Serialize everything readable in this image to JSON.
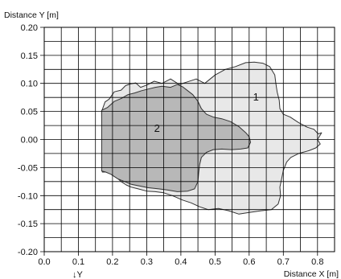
{
  "chart_data": {
    "type": "area",
    "xlabel": "Distance X [m]",
    "ylabel": "Distance Y [m]",
    "xlim": [
      0.0,
      0.85
    ],
    "ylim": [
      -0.2,
      0.2
    ],
    "grid": true,
    "x_ticks": [
      "0.0",
      "0.1",
      "0.2",
      "0.3",
      "0.4",
      "0.5",
      "0.6",
      "0.7",
      "0.8"
    ],
    "y_ticks": [
      "0.20",
      "0.15",
      "0.10",
      "0.05",
      "0.00",
      "-0.05",
      "-0.10",
      "-0.15",
      "-0.20"
    ],
    "stray_text": "↓Y",
    "colors": {
      "grid": "#000000",
      "region_1_fill": "#e8e8e8",
      "region_2_fill": "#b8b8b8",
      "outline": "#333333"
    },
    "series": [
      {
        "name": "1",
        "points": [
          [
            0.168,
            0.05
          ],
          [
            0.178,
            0.067
          ],
          [
            0.19,
            0.072
          ],
          [
            0.205,
            0.085
          ],
          [
            0.225,
            0.088
          ],
          [
            0.238,
            0.096
          ],
          [
            0.252,
            0.099
          ],
          [
            0.268,
            0.101
          ],
          [
            0.282,
            0.093
          ],
          [
            0.3,
            0.097
          ],
          [
            0.322,
            0.104
          ],
          [
            0.345,
            0.1
          ],
          [
            0.37,
            0.108
          ],
          [
            0.395,
            0.098
          ],
          [
            0.42,
            0.103
          ],
          [
            0.445,
            0.108
          ],
          [
            0.47,
            0.1
          ],
          [
            0.5,
            0.115
          ],
          [
            0.53,
            0.125
          ],
          [
            0.56,
            0.13
          ],
          [
            0.59,
            0.137
          ],
          [
            0.615,
            0.138
          ],
          [
            0.64,
            0.136
          ],
          [
            0.66,
            0.13
          ],
          [
            0.675,
            0.115
          ],
          [
            0.678,
            0.1
          ],
          [
            0.682,
            0.085
          ],
          [
            0.688,
            0.07
          ],
          [
            0.69,
            0.055
          ],
          [
            0.7,
            0.045
          ],
          [
            0.72,
            0.04
          ],
          [
            0.745,
            0.03
          ],
          [
            0.77,
            0.022
          ],
          [
            0.79,
            0.018
          ],
          [
            0.802,
            0.01
          ],
          [
            0.812,
            0.012
          ],
          [
            0.8,
            0.0
          ],
          [
            0.808,
            -0.008
          ],
          [
            0.795,
            -0.015
          ],
          [
            0.775,
            -0.02
          ],
          [
            0.745,
            -0.025
          ],
          [
            0.722,
            -0.032
          ],
          [
            0.71,
            -0.04
          ],
          [
            0.7,
            -0.055
          ],
          [
            0.695,
            -0.07
          ],
          [
            0.69,
            -0.085
          ],
          [
            0.692,
            -0.1
          ],
          [
            0.685,
            -0.115
          ],
          [
            0.665,
            -0.125
          ],
          [
            0.635,
            -0.127
          ],
          [
            0.6,
            -0.13
          ],
          [
            0.57,
            -0.133
          ],
          [
            0.54,
            -0.127
          ],
          [
            0.51,
            -0.123
          ],
          [
            0.48,
            -0.125
          ],
          [
            0.455,
            -0.12
          ],
          [
            0.43,
            -0.113
          ],
          [
            0.405,
            -0.108
          ],
          [
            0.375,
            -0.1
          ],
          [
            0.35,
            -0.095
          ],
          [
            0.325,
            -0.093
          ],
          [
            0.3,
            -0.092
          ],
          [
            0.275,
            -0.088
          ],
          [
            0.255,
            -0.085
          ],
          [
            0.24,
            -0.081
          ],
          [
            0.225,
            -0.075
          ],
          [
            0.21,
            -0.067
          ],
          [
            0.195,
            -0.06
          ],
          [
            0.18,
            -0.058
          ],
          [
            0.17,
            -0.058
          ]
        ]
      },
      {
        "name": "2",
        "points": [
          [
            0.168,
            0.052
          ],
          [
            0.185,
            0.057
          ],
          [
            0.205,
            0.068
          ],
          [
            0.225,
            0.073
          ],
          [
            0.245,
            0.08
          ],
          [
            0.265,
            0.083
          ],
          [
            0.285,
            0.087
          ],
          [
            0.305,
            0.09
          ],
          [
            0.325,
            0.093
          ],
          [
            0.345,
            0.095
          ],
          [
            0.37,
            0.093
          ],
          [
            0.39,
            0.098
          ],
          [
            0.405,
            0.094
          ],
          [
            0.42,
            0.087
          ],
          [
            0.435,
            0.08
          ],
          [
            0.45,
            0.068
          ],
          [
            0.46,
            0.055
          ],
          [
            0.475,
            0.045
          ],
          [
            0.495,
            0.04
          ],
          [
            0.52,
            0.037
          ],
          [
            0.545,
            0.032
          ],
          [
            0.57,
            0.023
          ],
          [
            0.59,
            0.012
          ],
          [
            0.6,
            0.005
          ],
          [
            0.604,
            -0.005
          ],
          [
            0.596,
            -0.015
          ],
          [
            0.575,
            -0.017
          ],
          [
            0.548,
            -0.018
          ],
          [
            0.52,
            -0.017
          ],
          [
            0.495,
            -0.018
          ],
          [
            0.475,
            -0.023
          ],
          [
            0.46,
            -0.032
          ],
          [
            0.455,
            -0.045
          ],
          [
            0.452,
            -0.06
          ],
          [
            0.45,
            -0.075
          ],
          [
            0.44,
            -0.088
          ],
          [
            0.42,
            -0.092
          ],
          [
            0.39,
            -0.093
          ],
          [
            0.36,
            -0.09
          ],
          [
            0.335,
            -0.088
          ],
          [
            0.305,
            -0.086
          ],
          [
            0.28,
            -0.083
          ],
          [
            0.255,
            -0.08
          ],
          [
            0.235,
            -0.075
          ],
          [
            0.215,
            -0.07
          ],
          [
            0.195,
            -0.062
          ],
          [
            0.18,
            -0.058
          ],
          [
            0.168,
            -0.056
          ]
        ]
      }
    ],
    "region_labels": [
      {
        "text": "1",
        "x": 0.62,
        "y": 0.077
      },
      {
        "text": "2",
        "x": 0.33,
        "y": 0.021
      }
    ]
  }
}
